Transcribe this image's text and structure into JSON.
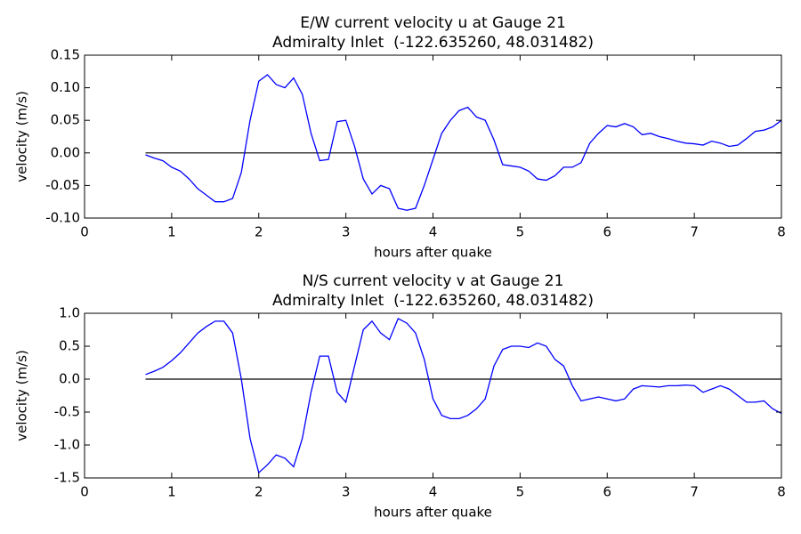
{
  "chart_data": [
    {
      "type": "line",
      "title": "E/W current velocity u at Gauge 21",
      "subtitle": "Admiralty Inlet  (-122.635260, 48.031482)",
      "xlabel": "hours after quake",
      "ylabel": "velocity (m/s)",
      "x": [
        0.7,
        0.8,
        0.9,
        1.0,
        1.1,
        1.2,
        1.3,
        1.4,
        1.5,
        1.6,
        1.7,
        1.8,
        1.9,
        2.0,
        2.1,
        2.2,
        2.3,
        2.4,
        2.5,
        2.6,
        2.7,
        2.8,
        2.9,
        3.0,
        3.1,
        3.2,
        3.3,
        3.4,
        3.5,
        3.6,
        3.7,
        3.8,
        3.9,
        4.0,
        4.1,
        4.2,
        4.3,
        4.4,
        4.5,
        4.6,
        4.7,
        4.8,
        4.9,
        5.0,
        5.1,
        5.2,
        5.3,
        5.4,
        5.5,
        5.6,
        5.7,
        5.8,
        5.9,
        6.0,
        6.1,
        6.2,
        6.3,
        6.4,
        6.5,
        6.6,
        6.7,
        6.8,
        6.9,
        7.0,
        7.1,
        7.2,
        7.3,
        7.4,
        7.5,
        7.6,
        7.7,
        7.8,
        7.9,
        8.0
      ],
      "values": [
        -0.003,
        -0.008,
        -0.012,
        -0.022,
        -0.028,
        -0.04,
        -0.055,
        -0.065,
        -0.075,
        -0.075,
        -0.07,
        -0.03,
        0.05,
        0.11,
        0.12,
        0.105,
        0.1,
        0.115,
        0.09,
        0.03,
        -0.012,
        -0.01,
        0.048,
        0.05,
        0.01,
        -0.04,
        -0.063,
        -0.05,
        -0.055,
        -0.085,
        -0.088,
        -0.085,
        -0.05,
        -0.01,
        0.03,
        0.05,
        0.065,
        0.07,
        0.055,
        0.05,
        0.02,
        -0.018,
        -0.02,
        -0.022,
        -0.028,
        -0.04,
        -0.042,
        -0.035,
        -0.022,
        -0.022,
        -0.015,
        0.015,
        0.03,
        0.042,
        0.04,
        0.045,
        0.04,
        0.028,
        0.03,
        0.025,
        0.022,
        0.018,
        0.015,
        0.014,
        0.012,
        0.018,
        0.015,
        0.01,
        0.012,
        0.022,
        0.033,
        0.035,
        0.04,
        0.05
      ],
      "color": "#0000ff",
      "hline": 0,
      "hline_color": "#000000",
      "xlim": [
        0,
        8
      ],
      "xticks": [
        0,
        1,
        2,
        3,
        4,
        5,
        6,
        7,
        8
      ],
      "ylim": [
        -0.1,
        0.15
      ],
      "yticks": [
        {
          "value": -0.1,
          "label": "-0.10"
        },
        -0.05,
        {
          "value": 0,
          "label": "0.00"
        },
        0.05,
        {
          "value": 0.1,
          "label": "0.10"
        },
        0.15
      ]
    },
    {
      "type": "line",
      "title": "N/S current velocity v at Gauge 21",
      "subtitle": "Admiralty Inlet  (-122.635260, 48.031482)",
      "xlabel": "hours after quake",
      "ylabel": "velocity (m/s)",
      "x": [
        0.7,
        0.8,
        0.9,
        1.0,
        1.1,
        1.2,
        1.3,
        1.4,
        1.5,
        1.6,
        1.7,
        1.8,
        1.9,
        2.0,
        2.1,
        2.2,
        2.3,
        2.4,
        2.5,
        2.6,
        2.7,
        2.8,
        2.9,
        3.0,
        3.1,
        3.2,
        3.3,
        3.4,
        3.5,
        3.6,
        3.7,
        3.8,
        3.9,
        4.0,
        4.1,
        4.2,
        4.3,
        4.4,
        4.5,
        4.6,
        4.7,
        4.8,
        4.9,
        5.0,
        5.1,
        5.2,
        5.3,
        5.4,
        5.5,
        5.6,
        5.7,
        5.8,
        5.9,
        6.0,
        6.1,
        6.2,
        6.3,
        6.4,
        6.5,
        6.6,
        6.7,
        6.8,
        6.9,
        7.0,
        7.1,
        7.2,
        7.3,
        7.4,
        7.5,
        7.6,
        7.7,
        7.8,
        7.9,
        8.0
      ],
      "values": [
        0.07,
        0.12,
        0.18,
        0.28,
        0.4,
        0.55,
        0.7,
        0.8,
        0.88,
        0.88,
        0.7,
        0.0,
        -0.9,
        -1.42,
        -1.3,
        -1.15,
        -1.2,
        -1.33,
        -0.9,
        -0.2,
        0.35,
        0.35,
        -0.2,
        -0.35,
        0.2,
        0.75,
        0.88,
        0.7,
        0.6,
        0.92,
        0.85,
        0.7,
        0.3,
        -0.3,
        -0.55,
        -0.6,
        -0.6,
        -0.55,
        -0.45,
        -0.3,
        0.2,
        0.45,
        0.5,
        0.5,
        0.48,
        0.55,
        0.5,
        0.3,
        0.2,
        -0.1,
        -0.33,
        -0.3,
        -0.27,
        -0.3,
        -0.33,
        -0.3,
        -0.15,
        -0.1,
        -0.11,
        -0.12,
        -0.1,
        -0.1,
        -0.09,
        -0.1,
        -0.2,
        -0.15,
        -0.1,
        -0.15,
        -0.25,
        -0.35,
        -0.35,
        -0.33,
        -0.45,
        -0.52
      ],
      "color": "#0000ff",
      "hline": 0,
      "hline_color": "#000000",
      "xlim": [
        0,
        8
      ],
      "xticks": [
        0,
        1,
        2,
        3,
        4,
        5,
        6,
        7,
        8
      ],
      "ylim": [
        -1.5,
        1.0
      ],
      "yticks": [
        -1.5,
        {
          "value": -1,
          "label": "-1.0"
        },
        -0.5,
        {
          "value": 0,
          "label": "0.0"
        },
        0.5,
        {
          "value": 1,
          "label": "1.0"
        }
      ]
    }
  ]
}
